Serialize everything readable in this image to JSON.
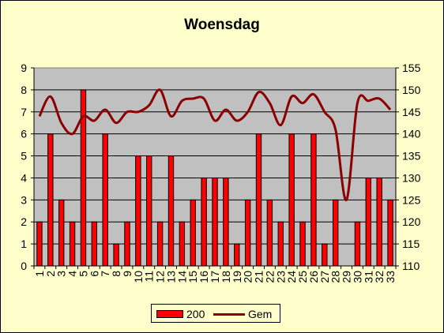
{
  "chart_data": {
    "type": "bar",
    "title": "Woensdag",
    "categories": [
      "1",
      "2",
      "3",
      "4",
      "5",
      "6",
      "7",
      "8",
      "9",
      "10",
      "11",
      "12",
      "13",
      "14",
      "15",
      "16",
      "17",
      "18",
      "19",
      "20",
      "21",
      "22",
      "23",
      "24",
      "25",
      "26",
      "27",
      "28",
      "29",
      "30",
      "31",
      "32",
      "33"
    ],
    "series": [
      {
        "name": "200",
        "type": "bar",
        "axis": "left",
        "color": "#FF0000",
        "values": [
          2,
          6,
          3,
          2,
          8,
          2,
          6,
          1,
          2,
          5,
          5,
          2,
          5,
          2,
          3,
          4,
          4,
          4,
          1,
          3,
          6,
          3,
          2,
          6,
          2,
          6,
          1,
          3,
          0,
          2,
          4,
          4,
          3
        ]
      },
      {
        "name": "Gem",
        "type": "line",
        "axis": "right",
        "color": "#8B0000",
        "values": [
          144,
          148.5,
          142.5,
          140,
          144,
          143,
          145.5,
          142.5,
          145,
          145,
          146.5,
          150,
          144,
          147.5,
          148,
          148,
          143,
          145.5,
          143,
          145,
          149.5,
          147,
          142,
          148.5,
          147,
          149,
          145,
          141,
          125,
          147,
          147.5,
          148,
          145.5
        ]
      }
    ],
    "yleft": {
      "lim": [
        0,
        9
      ],
      "ticks": [
        "0",
        "1",
        "2",
        "3",
        "4",
        "5",
        "6",
        "7",
        "8",
        "9"
      ]
    },
    "yright": {
      "lim": [
        110,
        155
      ],
      "ticks": [
        "110",
        "115",
        "120",
        "125",
        "130",
        "135",
        "140",
        "145",
        "150",
        "155"
      ]
    },
    "grid": true,
    "legend": "bottom",
    "legend_items": [
      {
        "label": "200",
        "kind": "bar"
      },
      {
        "label": "Gem",
        "kind": "line"
      }
    ]
  }
}
